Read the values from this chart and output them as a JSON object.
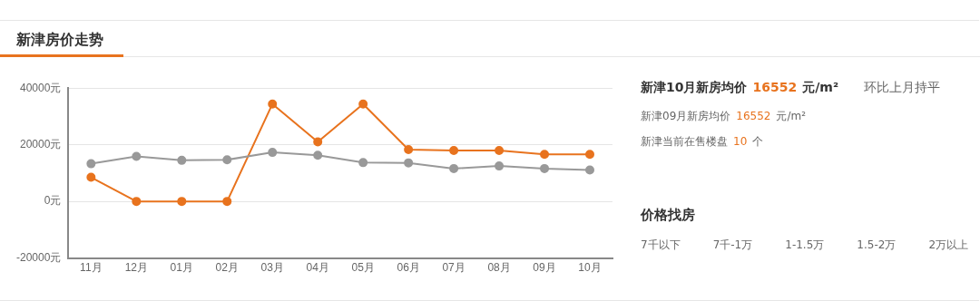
{
  "chart_data": [
    {
      "type": "line",
      "title": "新津房价走势",
      "categories": [
        "11月",
        "12月",
        "01月",
        "02月",
        "03月",
        "04月",
        "05月",
        "06月",
        "07月",
        "08月",
        "09月",
        "10月"
      ],
      "series": [
        {
          "color": "#999999",
          "values": [
            13300,
            15900,
            14500,
            14700,
            17300,
            16300,
            13700,
            13600,
            11600,
            12500,
            11600,
            11100
          ]
        },
        {
          "color": "#e8731e",
          "values": [
            8500,
            0,
            0,
            0,
            34400,
            21000,
            34400,
            18300,
            18000,
            18000,
            16600,
            16600
          ]
        }
      ],
      "ylim": [
        -20000,
        40000
      ],
      "yticks": [
        {
          "value": -20000,
          "label": "-20000元"
        },
        {
          "value": 0,
          "label": "0元"
        },
        {
          "value": 20000,
          "label": "20000元"
        },
        {
          "value": 40000,
          "label": "40000元"
        }
      ],
      "grid": "y",
      "marker": "circle"
    },
    {
      "type": "other",
      "annotations": [
        "新津10月新房均价",
        "16552",
        "元/m²",
        "环比上月持平",
        "新津09月新房均价",
        "16552",
        "元/m²",
        "新津当前在售楼盘",
        "10",
        "个",
        "价格找房",
        "7千以下",
        "7千-1万",
        "1-1.5万",
        "1.5-2万",
        "2万以上"
      ]
    }
  ]
}
